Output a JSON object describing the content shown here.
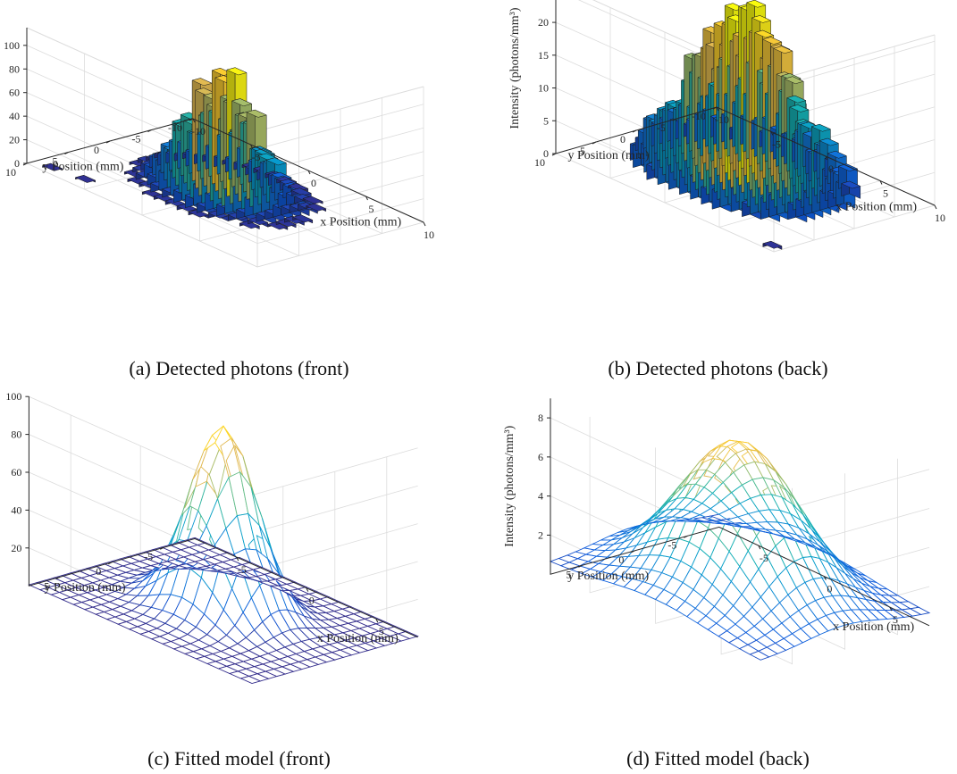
{
  "figure": {
    "captions": [
      "(a)  Detected photons (front)",
      "(b)  Detected photons (back)",
      "(c)  Fitted model (front)",
      "(d)  Fitted model (back)"
    ]
  },
  "chart_data": [
    {
      "id": "a",
      "type": "bar3d",
      "caption": "(a)  Detected photons (front)",
      "xlabel": "x Position (mm)",
      "ylabel": "y Position (mm)",
      "zlabel": "Intensity (photons/mm³)",
      "xticks": [
        -10,
        -5,
        0,
        5,
        10
      ],
      "yticks": [
        -10,
        -5,
        0,
        5,
        10
      ],
      "zticks": [
        0,
        20,
        40,
        60,
        80,
        100
      ],
      "xlim": [
        -10,
        10
      ],
      "ylim": [
        -10,
        10
      ],
      "zlim": [
        0,
        115
      ],
      "model": {
        "peak": 103,
        "sigma": 2.3,
        "noise": 0.22,
        "threshold": 2.0,
        "bin": 1.0,
        "extent": 7
      },
      "outliers": [
        [
          -8.5,
          9.0,
          1.5
        ],
        [
          -6.0,
          8.5,
          1.5
        ]
      ],
      "grid": true
    },
    {
      "id": "b",
      "type": "bar3d",
      "caption": "(b)  Detected photons (back)",
      "xlabel": "x Position (mm)",
      "ylabel": "y Position (mm)",
      "zlabel": "Intensity (photons/mm³)",
      "xticks": [
        -10,
        -5,
        0,
        5,
        10
      ],
      "yticks": [
        -10,
        -5,
        0,
        5,
        10
      ],
      "zticks": [
        0,
        5,
        10,
        15,
        20,
        25
      ],
      "xlim": [
        -10,
        10
      ],
      "ylim": [
        -10,
        10
      ],
      "zlim": [
        0,
        26
      ],
      "model": {
        "peak": 22,
        "sigma": 3.8,
        "noise": 0.35,
        "threshold": 0.6,
        "bin": 1.0,
        "extent": 8
      },
      "outliers": [
        [
          9.5,
          9.5,
          0.5
        ]
      ],
      "grid": true
    },
    {
      "id": "c",
      "type": "surface",
      "caption": "(c)  Fitted model (front)",
      "xlabel": "x Position (mm)",
      "ylabel": "y Position (mm)",
      "zlabel": "Intensity (photons/mm³)",
      "xticks": [
        -5,
        0,
        5
      ],
      "yticks": [
        -5,
        0,
        5
      ],
      "zticks": [
        20,
        40,
        60,
        80,
        100
      ],
      "xlim": [
        -8,
        8
      ],
      "ylim": [
        -8,
        8
      ],
      "zlim": [
        0,
        100
      ],
      "model": {
        "peak": 98,
        "sigma": 2.0,
        "offset": 0.5,
        "grid_n": 21
      },
      "grid": true
    },
    {
      "id": "d",
      "type": "surface",
      "caption": "(d)  Fitted model (back)",
      "xlabel": "x Position (mm)",
      "ylabel": "y Position (mm)",
      "zlabel": "Intensity (photons/mm³)",
      "xticks": [
        -5,
        0,
        5
      ],
      "yticks": [
        -5,
        0,
        5
      ],
      "zticks": [
        2,
        4,
        6,
        8
      ],
      "xlim": [
        -8,
        8
      ],
      "ylim": [
        -8,
        8
      ],
      "zlim": [
        0,
        9
      ],
      "model": {
        "peak": 8.1,
        "sigma": 3.6,
        "offset": 0.6,
        "grid_n": 21
      },
      "grid": true
    }
  ]
}
